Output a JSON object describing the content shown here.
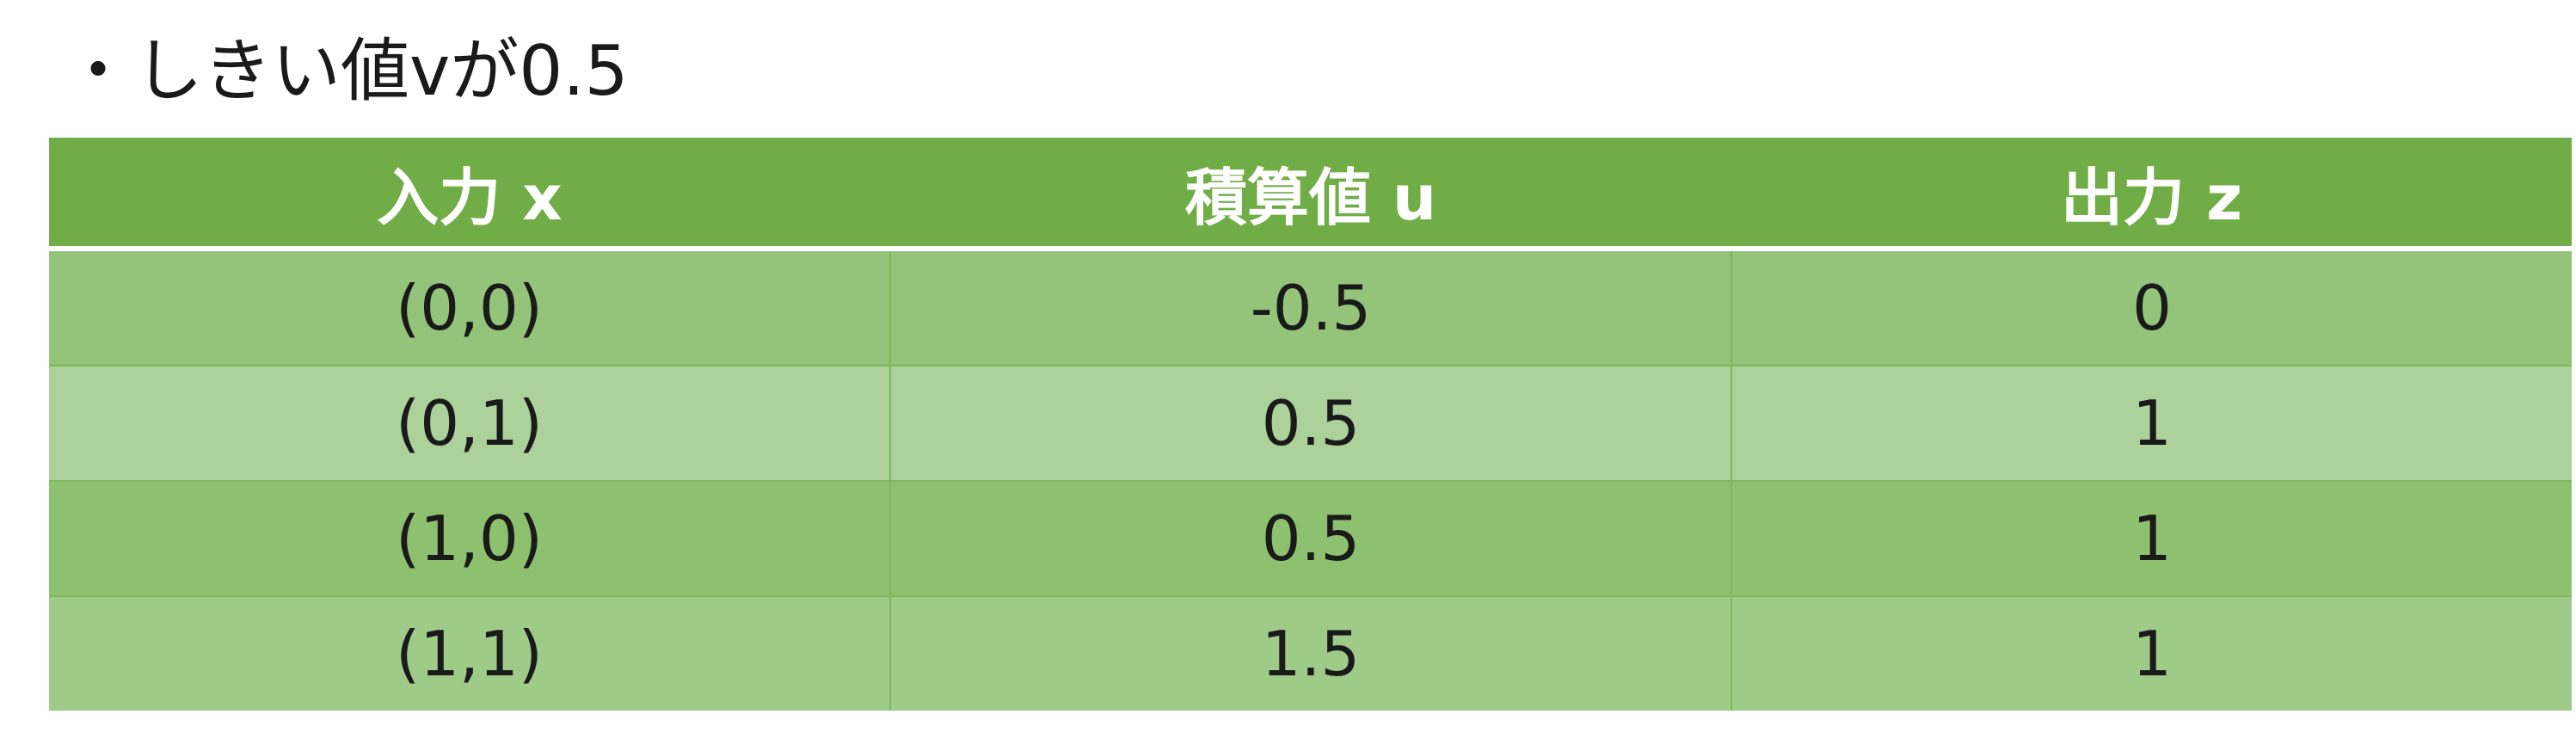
{
  "heading": {
    "bullet": "・",
    "text": "しきい値vが0.5"
  },
  "table": {
    "headers": [
      "入力 x",
      "積算値 u",
      "出力 z"
    ],
    "rows": [
      [
        "(0,0)",
        "-0.5",
        "0"
      ],
      [
        "(0,1)",
        "0.5",
        "1"
      ],
      [
        "(1,0)",
        "0.5",
        "1"
      ],
      [
        "(1,1)",
        "1.5",
        "1"
      ]
    ]
  },
  "colors": {
    "header_bg": "#70ad47",
    "header_text": "#ffffff",
    "row_band_dark": "#94c47a",
    "row_band_light": "#acd19b"
  }
}
